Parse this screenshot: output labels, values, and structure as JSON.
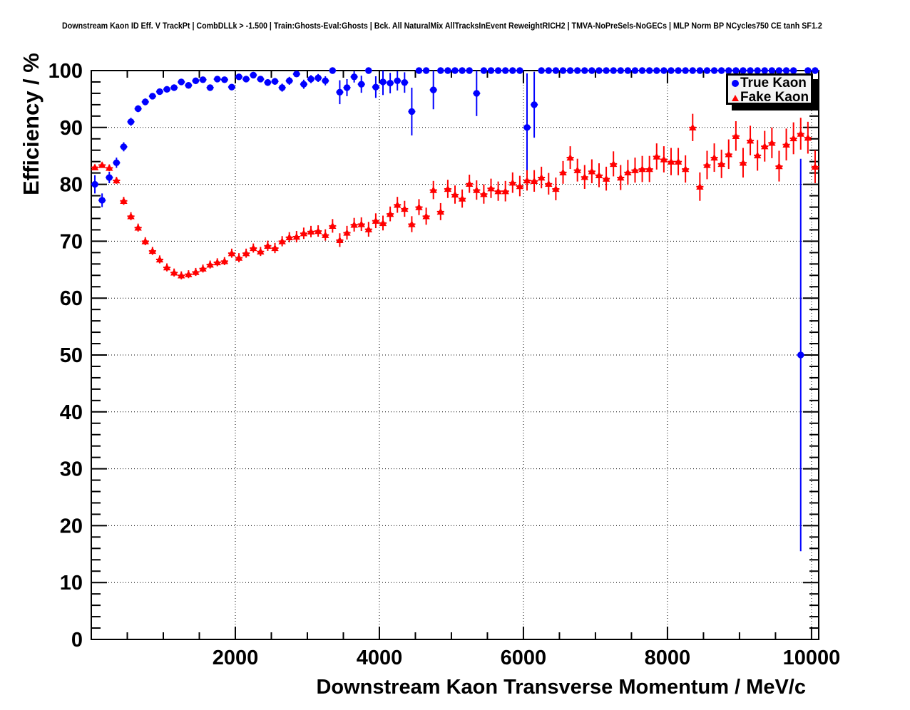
{
  "chart_data": {
    "type": "scatter",
    "title": "Downstream Kaon ID Eff. V TrackPt | CombDLLk > -1.500 | Train:Ghosts-Eval:Ghosts | Bck. All NaturalMix AllTracksInEvent ReweightRICH2 | TMVA-NoPreSels-NoGECs | MLP Norm BP NCycles750 CE tanh SF1.2",
    "xlabel": "Downstream Kaon Transverse Momentum / MeV/c",
    "ylabel": "Efficiency / %",
    "xlim": [
      0,
      10100
    ],
    "ylim": [
      0,
      100
    ],
    "x_major_ticks": [
      2000,
      4000,
      6000,
      8000,
      10000
    ],
    "x_minor_step": 500,
    "y_major_ticks": [
      0,
      10,
      20,
      30,
      40,
      50,
      60,
      70,
      80,
      90,
      100
    ],
    "y_minor_step": 2,
    "grid": "dotted",
    "legend_position": "top-right",
    "bin_width": 100,
    "x": [
      50,
      150,
      250,
      350,
      450,
      550,
      650,
      750,
      850,
      950,
      1050,
      1150,
      1250,
      1350,
      1450,
      1550,
      1650,
      1750,
      1850,
      1950,
      2050,
      2150,
      2250,
      2350,
      2450,
      2550,
      2650,
      2750,
      2850,
      2950,
      3050,
      3150,
      3250,
      3350,
      3450,
      3550,
      3650,
      3750,
      3850,
      3950,
      4050,
      4150,
      4250,
      4350,
      4450,
      4550,
      4650,
      4750,
      4850,
      4950,
      5050,
      5150,
      5250,
      5350,
      5450,
      5550,
      5650,
      5750,
      5850,
      5950,
      6050,
      6150,
      6250,
      6350,
      6450,
      6550,
      6650,
      6750,
      6850,
      6950,
      7050,
      7150,
      7250,
      7350,
      7450,
      7550,
      7650,
      7750,
      7850,
      7950,
      8050,
      8150,
      8250,
      8350,
      8450,
      8550,
      8650,
      8750,
      8850,
      8950,
      9050,
      9150,
      9250,
      9350,
      9450,
      9550,
      9650,
      9750,
      9850,
      9950,
      10050
    ],
    "series": [
      {
        "name": "True Kaon",
        "color": "#0000ff",
        "marker": "circle",
        "y": [
          80.0,
          77.2,
          81.2,
          83.8,
          86.6,
          91.0,
          93.3,
          94.5,
          95.5,
          96.3,
          96.7,
          97.0,
          98.0,
          97.4,
          98.2,
          98.4,
          97.0,
          98.5,
          98.4,
          97.1,
          98.9,
          98.5,
          99.2,
          98.5,
          97.9,
          98.1,
          97.0,
          98.2,
          99.4,
          97.6,
          98.5,
          98.7,
          98.2,
          100,
          96.2,
          97.0,
          98.9,
          97.6,
          100,
          97.1,
          98.0,
          97.8,
          98.2,
          97.9,
          92.8,
          100,
          100,
          96.6,
          100,
          100,
          100,
          100,
          100,
          96.0,
          100,
          100,
          100,
          100,
          100,
          100,
          90.0,
          94.0,
          100,
          100,
          100,
          100,
          100,
          100,
          100,
          100,
          100,
          100,
          100,
          100,
          100,
          100,
          100,
          100,
          100,
          100,
          100,
          100,
          100,
          100,
          100,
          100,
          100,
          100,
          100,
          100,
          100,
          100,
          100,
          100,
          100,
          100,
          100,
          100,
          50.0,
          100,
          100
        ],
        "ey": [
          1.6,
          1.2,
          1.0,
          0.9,
          0.8,
          0.7,
          0.6,
          0.6,
          0.5,
          0.5,
          0.5,
          0.5,
          0.4,
          0.4,
          0.4,
          0.4,
          0.5,
          0.4,
          0.4,
          0.5,
          0.4,
          0.5,
          0.4,
          0.5,
          0.6,
          0.6,
          0.7,
          0.7,
          0.5,
          0.8,
          0.7,
          0.7,
          0.8,
          0.2,
          2.1,
          1.5,
          1.0,
          1.5,
          0.2,
          1.9,
          2.3,
          1.8,
          1.7,
          1.8,
          4.2,
          0.2,
          0.2,
          3.4,
          0.2,
          0.2,
          0.2,
          0.2,
          0.2,
          4.0,
          0.2,
          0.2,
          0.2,
          0.2,
          0.2,
          0.2,
          9.5,
          5.8,
          0.2,
          0.2,
          0.2,
          0.2,
          0.2,
          0.2,
          0.2,
          0.2,
          0.2,
          0.2,
          0.2,
          0.2,
          0.2,
          0.2,
          0.2,
          0.2,
          0.2,
          0.2,
          0.2,
          0.2,
          0.2,
          0.2,
          0.2,
          0.2,
          0.2,
          0.2,
          0.2,
          0.2,
          0.2,
          0.2,
          0.2,
          0.2,
          0.2,
          0.2,
          0.2,
          0.2,
          34.5,
          0.2,
          0.2
        ]
      },
      {
        "name": "Fake Kaon",
        "color": "#ff0000",
        "marker": "triangle",
        "y": [
          83.0,
          83.4,
          82.9,
          80.7,
          77.1,
          74.4,
          72.4,
          70.0,
          68.3,
          66.8,
          65.4,
          64.5,
          64.0,
          64.2,
          64.6,
          65.2,
          65.9,
          66.3,
          66.5,
          67.9,
          67.1,
          67.9,
          68.8,
          68.2,
          69.2,
          68.8,
          70.0,
          70.7,
          70.8,
          71.4,
          71.7,
          71.8,
          71.1,
          72.7,
          70.2,
          71.5,
          72.9,
          73.0,
          72.1,
          73.6,
          73.2,
          74.8,
          76.4,
          75.7,
          73.0,
          76.0,
          74.4,
          79.0,
          75.2,
          79.2,
          78.2,
          77.5,
          80.1,
          79.0,
          78.3,
          79.3,
          78.8,
          78.8,
          80.3,
          79.7,
          80.7,
          80.6,
          81.2,
          80.1,
          79.2,
          82.1,
          84.7,
          82.5,
          81.3,
          82.3,
          81.6,
          81.0,
          83.6,
          81.2,
          82.1,
          82.5,
          82.7,
          82.7,
          84.9,
          84.4,
          84.0,
          84.0,
          82.7,
          90.0,
          79.6,
          83.4,
          84.7,
          83.6,
          85.3,
          88.5,
          83.8,
          87.7,
          85.1,
          86.7,
          87.3,
          83.2,
          87.0,
          88.1,
          88.9,
          88.2,
          83.1
        ],
        "ey": [
          0.5,
          0.5,
          0.6,
          0.6,
          0.7,
          0.7,
          0.7,
          0.7,
          0.7,
          0.7,
          0.7,
          0.7,
          0.7,
          0.7,
          0.7,
          0.7,
          0.7,
          0.7,
          0.7,
          0.8,
          0.8,
          0.8,
          0.8,
          0.8,
          0.9,
          0.9,
          0.9,
          0.9,
          1.0,
          1.0,
          1.0,
          1.0,
          1.0,
          1.2,
          1.2,
          1.2,
          1.2,
          1.2,
          1.3,
          1.3,
          1.3,
          1.3,
          1.4,
          1.4,
          1.4,
          1.4,
          1.5,
          1.6,
          1.5,
          1.6,
          1.6,
          1.6,
          1.6,
          1.7,
          1.7,
          1.7,
          1.7,
          1.8,
          1.8,
          1.8,
          1.8,
          1.9,
          1.9,
          1.9,
          2.0,
          2.0,
          2.0,
          2.0,
          2.1,
          2.1,
          2.1,
          2.1,
          2.2,
          2.2,
          2.2,
          2.2,
          2.3,
          2.3,
          2.3,
          2.3,
          2.4,
          2.4,
          2.4,
          2.4,
          2.5,
          2.5,
          2.5,
          2.5,
          2.6,
          2.6,
          2.6,
          2.6,
          2.7,
          2.7,
          2.7,
          2.7,
          2.8,
          2.8,
          2.8,
          2.8,
          2.9
        ]
      }
    ]
  },
  "colors": {
    "frame": "#000000",
    "grid": "#000000",
    "true_kaon": "#0000ff",
    "fake_kaon": "#ff0000",
    "legend_bg": "#f4f4f4",
    "legend_shadow": "#000000"
  }
}
